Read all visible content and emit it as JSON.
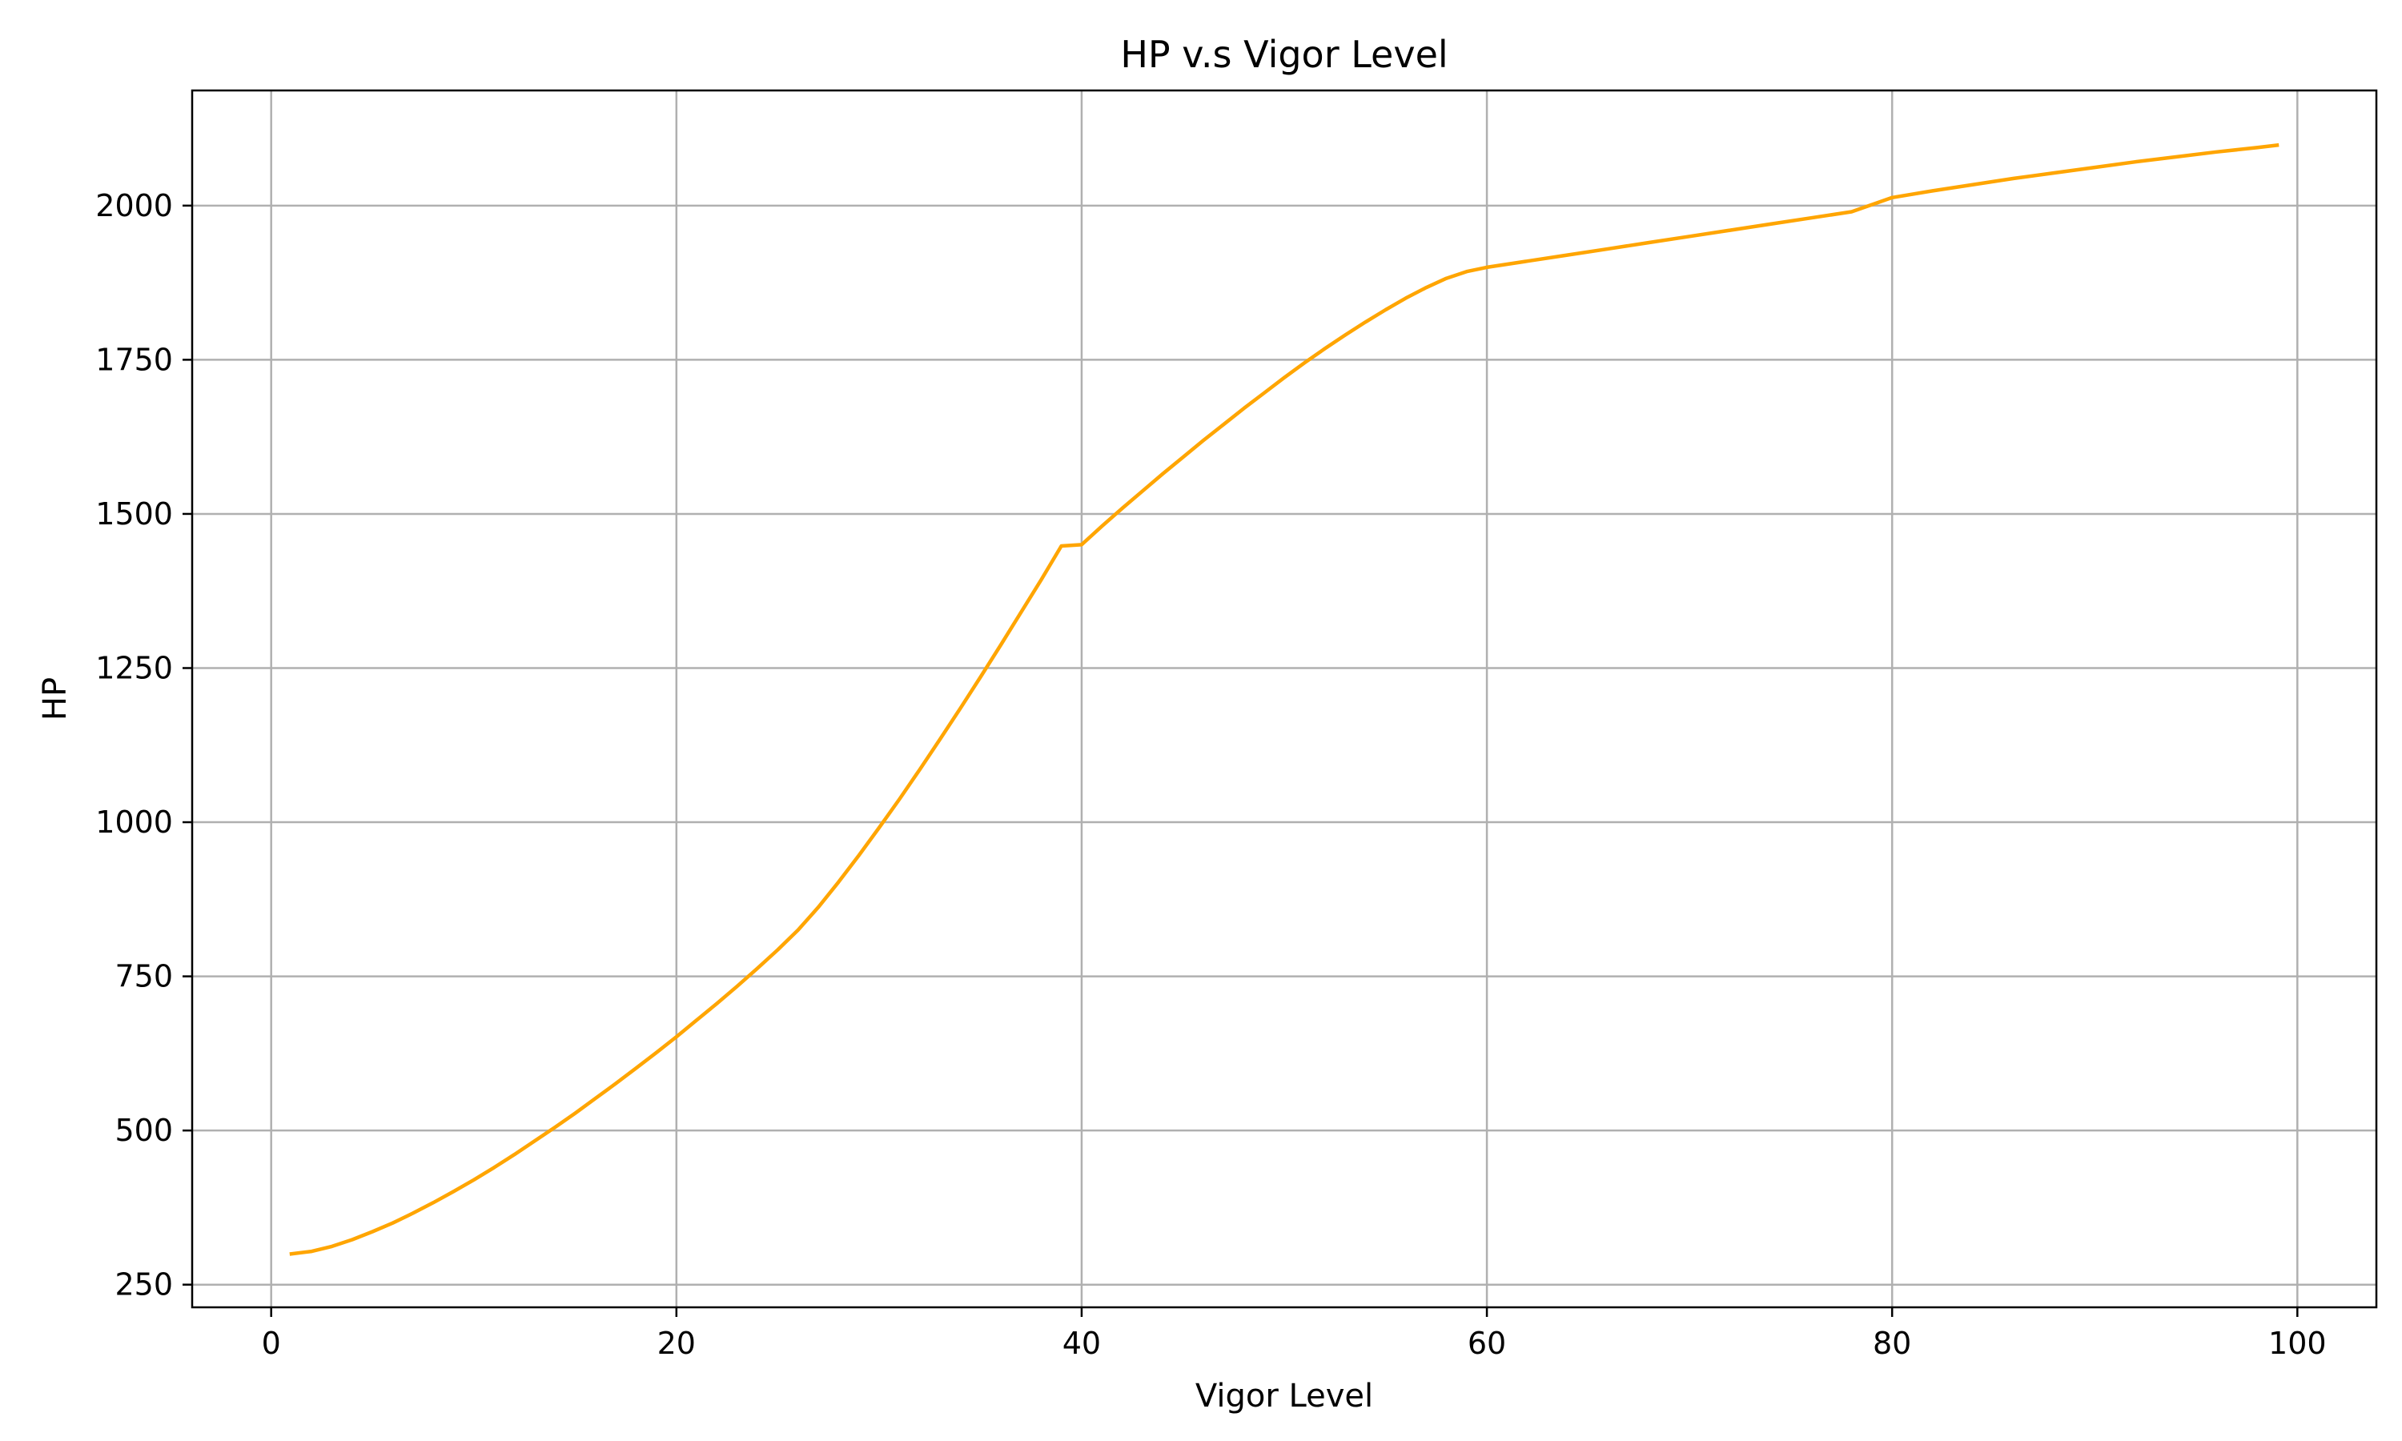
{
  "chart_data": {
    "type": "line",
    "title": "HP v.s Vigor Level",
    "xlabel": "Vigor Level",
    "ylabel": "HP",
    "xlim": [
      -3.9,
      103.9
    ],
    "ylim": [
      213.25,
      2186.75
    ],
    "xticks": [
      0,
      20,
      40,
      60,
      80,
      100
    ],
    "yticks": [
      250,
      500,
      750,
      1000,
      1250,
      1500,
      1750,
      2000
    ],
    "grid": true,
    "legend": "none",
    "series": [
      {
        "color": "#ffa500",
        "points": [
          [
            1,
            300
          ],
          [
            2,
            304
          ],
          [
            3,
            312
          ],
          [
            4,
            323
          ],
          [
            5,
            336
          ],
          [
            6,
            350
          ],
          [
            7,
            366
          ],
          [
            8,
            383
          ],
          [
            9,
            401
          ],
          [
            10,
            420
          ],
          [
            11,
            440
          ],
          [
            12,
            461
          ],
          [
            13,
            483
          ],
          [
            14,
            505
          ],
          [
            15,
            528
          ],
          [
            16,
            552
          ],
          [
            17,
            576
          ],
          [
            18,
            601
          ],
          [
            19,
            626
          ],
          [
            20,
            652
          ],
          [
            21,
            679
          ],
          [
            22,
            706
          ],
          [
            23,
            734
          ],
          [
            24,
            763
          ],
          [
            25,
            793
          ],
          [
            26,
            825
          ],
          [
            27,
            862
          ],
          [
            28,
            903
          ],
          [
            29,
            946
          ],
          [
            30,
            991
          ],
          [
            31,
            1037
          ],
          [
            32,
            1085
          ],
          [
            33,
            1134
          ],
          [
            34,
            1184
          ],
          [
            35,
            1235
          ],
          [
            36,
            1287
          ],
          [
            37,
            1340
          ],
          [
            38,
            1393
          ],
          [
            39,
            1448
          ],
          [
            40,
            1450
          ],
          [
            41,
            1480
          ],
          [
            42,
            1509
          ],
          [
            43,
            1537
          ],
          [
            44,
            1565
          ],
          [
            45,
            1592
          ],
          [
            46,
            1619
          ],
          [
            47,
            1645
          ],
          [
            48,
            1671
          ],
          [
            49,
            1696
          ],
          [
            50,
            1721
          ],
          [
            51,
            1745
          ],
          [
            52,
            1768
          ],
          [
            53,
            1790
          ],
          [
            54,
            1811
          ],
          [
            55,
            1831
          ],
          [
            56,
            1850
          ],
          [
            57,
            1867
          ],
          [
            58,
            1882
          ],
          [
            59,
            1893
          ],
          [
            60,
            1900
          ],
          [
            62,
            1910
          ],
          [
            64,
            1920
          ],
          [
            66,
            1930
          ],
          [
            68,
            1940
          ],
          [
            70,
            1950
          ],
          [
            72,
            1960
          ],
          [
            74,
            1970
          ],
          [
            76,
            1980
          ],
          [
            78,
            1990
          ],
          [
            80,
            2013
          ],
          [
            82,
            2024
          ],
          [
            84,
            2034
          ],
          [
            86,
            2044
          ],
          [
            88,
            2053
          ],
          [
            90,
            2062
          ],
          [
            92,
            2071
          ],
          [
            94,
            2079
          ],
          [
            96,
            2087
          ],
          [
            98,
            2094
          ],
          [
            99,
            2098
          ]
        ]
      }
    ]
  }
}
